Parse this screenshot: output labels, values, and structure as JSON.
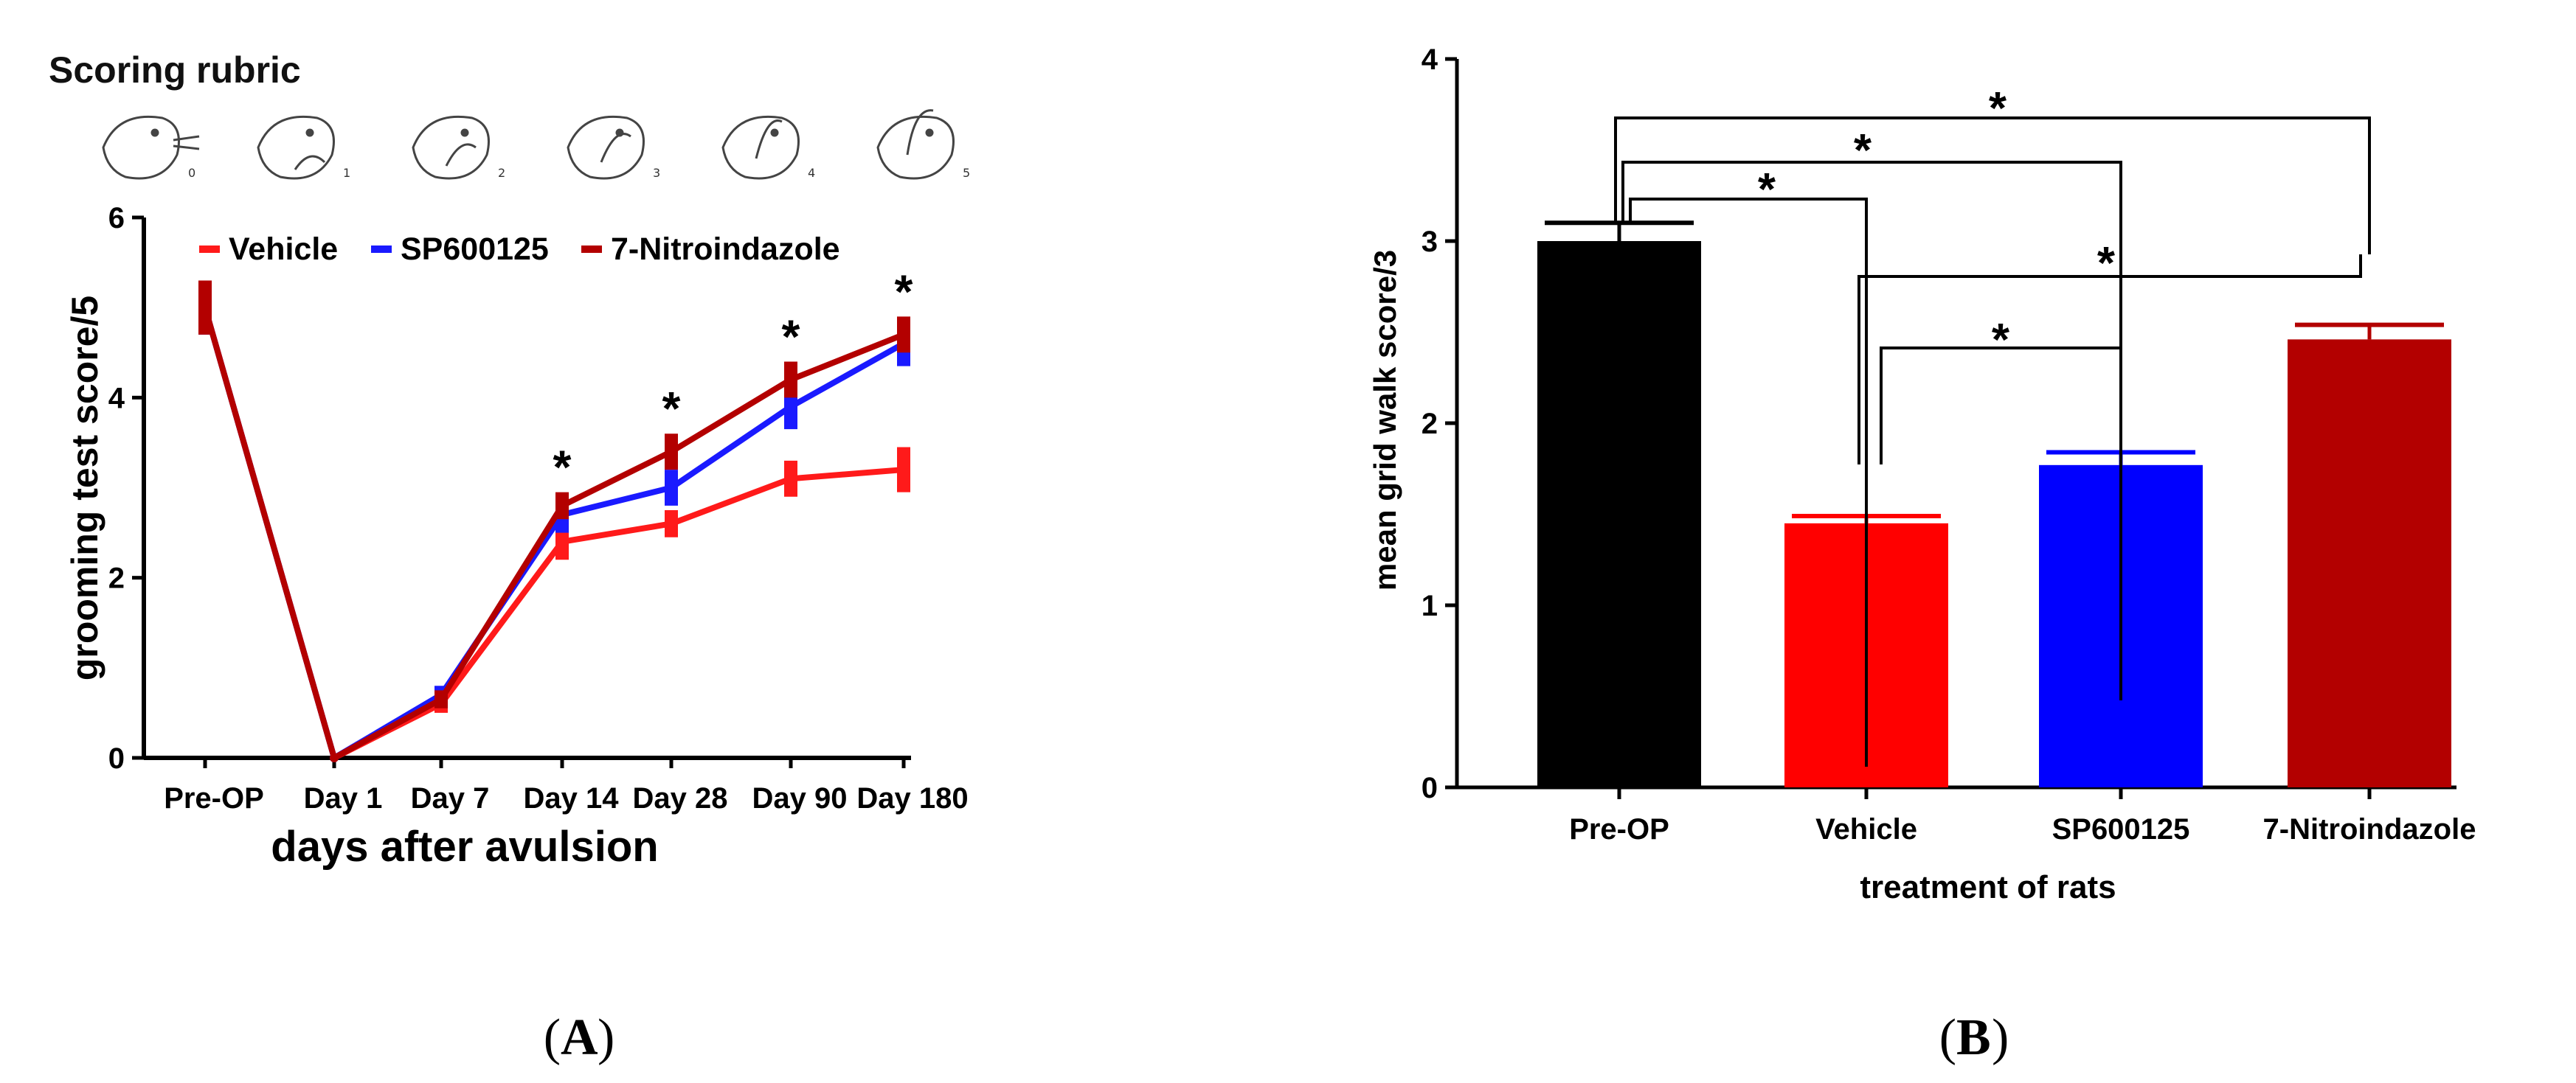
{
  "chart_data": [
    {
      "id": "A",
      "type": "line",
      "title": "Scoring rubric",
      "rubric_labels": [
        "0",
        "1",
        "2",
        "3",
        "4",
        "5"
      ],
      "xlabel": "days after avulsion",
      "ylabel": "grooming test score/5",
      "categories": [
        "Pre-OP",
        "Day 1",
        "Day 7",
        "Day 14",
        "Day 28",
        "Day 90",
        "Day 180"
      ],
      "ylim": [
        0,
        6
      ],
      "yticks": [
        "0",
        "2",
        "4",
        "6"
      ],
      "series": [
        {
          "name": "Vehicle",
          "color": "#ff1a1a",
          "values": [
            5.0,
            0.0,
            0.6,
            2.4,
            2.6,
            3.1,
            3.2
          ],
          "err": [
            0.3,
            0.0,
            0.1,
            0.2,
            0.15,
            0.2,
            0.25
          ]
        },
        {
          "name": "SP600125",
          "color": "#1a1aff",
          "values": [
            5.0,
            0.0,
            0.7,
            2.7,
            3.0,
            3.9,
            4.6
          ],
          "err": [
            0.3,
            0.0,
            0.1,
            0.2,
            0.2,
            0.25,
            0.25
          ]
        },
        {
          "name": "7-Nitroindazole",
          "color": "#b30000",
          "values": [
            5.0,
            0.0,
            0.65,
            2.8,
            3.4,
            4.2,
            4.7
          ],
          "err": [
            0.3,
            0.0,
            0.1,
            0.15,
            0.2,
            0.2,
            0.2
          ]
        }
      ],
      "significance_marks": [
        "*",
        "*",
        "*",
        "*"
      ],
      "panel_label": "A"
    },
    {
      "id": "B",
      "type": "bar",
      "xlabel": "treatment of rats",
      "ylabel": "mean grid walk score/3",
      "categories": [
        "Pre-OP",
        "Vehicle",
        "SP600125",
        "7-Nitroindazole"
      ],
      "values": [
        3.0,
        1.45,
        1.77,
        2.46
      ],
      "err": [
        0.1,
        0.04,
        0.07,
        0.08
      ],
      "colors": [
        "#000000",
        "#ff0000",
        "#0000ff",
        "#b30000"
      ],
      "ylim": [
        0,
        4
      ],
      "yticks": [
        "0",
        "1",
        "2",
        "3",
        "4"
      ],
      "significance_marks": [
        "*",
        "*",
        "*",
        "*",
        "*"
      ],
      "panel_label": "B"
    }
  ]
}
